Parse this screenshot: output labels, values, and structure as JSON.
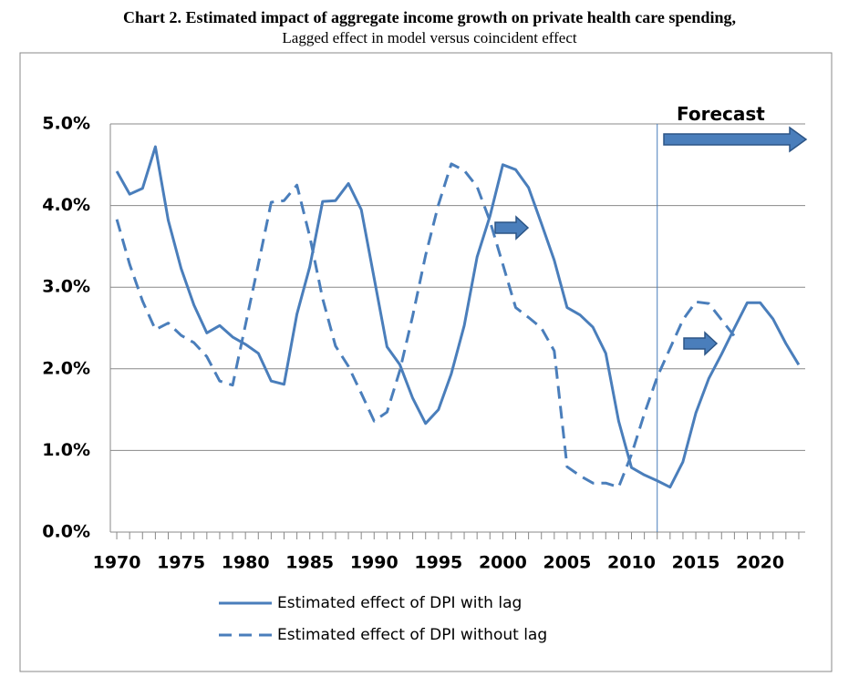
{
  "chart_data": {
    "type": "line",
    "title": "Chart 2. Estimated impact of aggregate income growth on private health care spending,",
    "subtitle": "Lagged effect in model versus coincident effect",
    "x": [
      1970,
      1971,
      1972,
      1973,
      1974,
      1975,
      1976,
      1977,
      1978,
      1979,
      1980,
      1981,
      1982,
      1983,
      1984,
      1985,
      1986,
      1987,
      1988,
      1989,
      1990,
      1991,
      1992,
      1993,
      1994,
      1995,
      1996,
      1997,
      1998,
      1999,
      2000,
      2001,
      2002,
      2003,
      2004,
      2005,
      2006,
      2007,
      2008,
      2009,
      2010,
      2011,
      2012,
      2013,
      2014,
      2015,
      2016,
      2017,
      2018,
      2019,
      2020,
      2021,
      2022,
      2023
    ],
    "series": [
      {
        "name": "Estimated effect of DPI with lag",
        "color": "#4a7ebb",
        "dash": false,
        "values": [
          4.42,
          4.14,
          4.21,
          4.72,
          3.82,
          3.23,
          2.78,
          2.44,
          2.53,
          2.39,
          2.3,
          2.19,
          1.85,
          1.81,
          2.67,
          3.25,
          4.05,
          4.06,
          4.27,
          3.95,
          3.11,
          2.27,
          2.05,
          1.64,
          1.33,
          1.5,
          1.94,
          2.53,
          3.37,
          3.87,
          4.5,
          4.44,
          4.22,
          3.78,
          3.33,
          2.75,
          2.66,
          2.51,
          2.19,
          1.36,
          0.79,
          0.7,
          0.63,
          0.55,
          0.86,
          1.46,
          1.88,
          2.18,
          2.5,
          2.81,
          2.81,
          2.61,
          2.31,
          2.05
        ]
      },
      {
        "name": "Estimated effect of DPI without lag",
        "color": "#4a7ebb",
        "dash": true,
        "values": [
          3.83,
          3.28,
          2.83,
          2.48,
          2.56,
          2.41,
          2.32,
          2.15,
          1.85,
          1.8,
          2.54,
          3.28,
          4.04,
          4.06,
          4.25,
          3.62,
          2.86,
          2.28,
          2.03,
          1.7,
          1.36,
          1.47,
          1.98,
          2.65,
          3.39,
          4.01,
          4.51,
          4.43,
          4.23,
          3.81,
          3.28,
          2.75,
          2.63,
          2.5,
          2.22,
          0.8,
          0.69,
          0.6,
          0.6,
          0.55,
          0.95,
          1.45,
          1.9,
          2.25,
          2.6,
          2.82,
          2.8,
          2.6,
          2.4,
          null,
          null,
          null,
          null,
          null
        ]
      }
    ],
    "xlim": [
      1969.5,
      2023.5
    ],
    "xticks": [
      1970,
      1975,
      1980,
      1985,
      1990,
      1995,
      2000,
      2005,
      2010,
      2015,
      2020
    ],
    "ylim": [
      0,
      5
    ],
    "yticks": [
      {
        "value": 0,
        "label": "0.0%"
      },
      {
        "value": 1,
        "label": "1.0%"
      },
      {
        "value": 2,
        "label": "2.0%"
      },
      {
        "value": 3,
        "label": "3.0%"
      },
      {
        "value": 4,
        "label": "4.0%"
      },
      {
        "value": 5,
        "label": "5.0%"
      }
    ],
    "grid": true,
    "annotation": {
      "text": "Forecast",
      "x": 2012
    }
  }
}
